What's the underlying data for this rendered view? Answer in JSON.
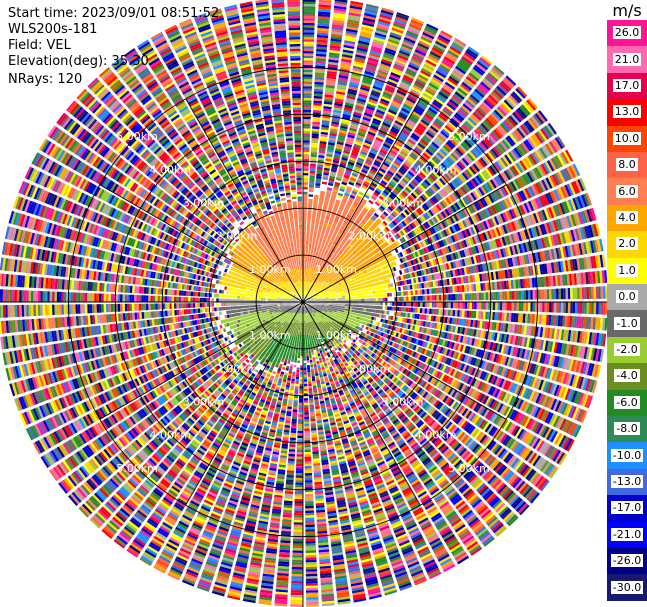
{
  "header": {
    "start_time": "Start time: 2023/09/01 08:51:52",
    "instrument": "WLS200s-181",
    "field": "Field: VEL",
    "elevation": "Elevation(deg): 35.30",
    "nrays": "NRays: 120"
  },
  "chart_data": {
    "type": "heatmap",
    "projection": "polar (PPI)",
    "field": "VEL",
    "units": "m/s",
    "nrays": 120,
    "max_range_km": 6.5,
    "range_rings_km": [
      1,
      2,
      3,
      4,
      5
    ],
    "range_ring_label": "2.00km",
    "inner_ring_label": "1.00km",
    "ring_labels": [
      {
        "text": "1.00km"
      },
      {
        "text": "2.00km"
      },
      {
        "text": "3.00km"
      },
      {
        "text": "4.00km"
      },
      {
        "text": "5.00km"
      }
    ],
    "colorbar": {
      "title": "m/s",
      "ticks": [
        "26.0",
        "21.0",
        "17.0",
        "13.0",
        "10.0",
        "8.0",
        "6.0",
        "4.0",
        "2.0",
        "1.0",
        "0.0",
        "-1.0",
        "-2.0",
        "-4.0",
        "-6.0",
        "-8.0",
        "-10.0",
        "-13.0",
        "-17.0",
        "-21.0",
        "-26.0",
        "-30.0"
      ],
      "colors": [
        "#ff1493",
        "#ff69b4",
        "#e6004c",
        "#ff0000",
        "#ff4500",
        "#ff6347",
        "#ff7f50",
        "#ffa500",
        "#ffd700",
        "#ffff00",
        "#a9a9a9",
        "#696969",
        "#9acd32",
        "#6b8e23",
        "#228b22",
        "#2e8b57",
        "#1e90ff",
        "#4169e1",
        "#0000cd",
        "#0000ff",
        "#00008b",
        "#191970"
      ]
    }
  }
}
